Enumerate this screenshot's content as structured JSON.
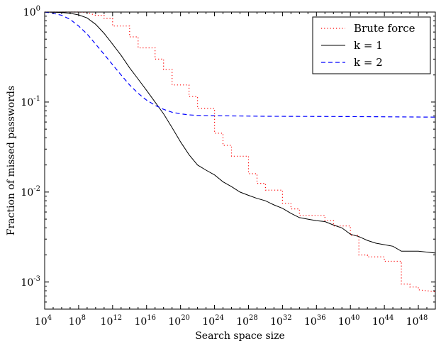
{
  "chart_data": {
    "type": "line",
    "title": "",
    "xlabel": "Search space size",
    "ylabel": "Fraction of missed passwords",
    "xscale": "log",
    "yscale": "log",
    "xlim": [
      10000.0,
      1e+50
    ],
    "ylim": [
      0.0005,
      1.0
    ],
    "grid": false,
    "legend_position": "top-right",
    "x_ticks": [
      {
        "exp": 4,
        "label_base": "10",
        "label_exp": "4"
      },
      {
        "exp": 8,
        "label_base": "10",
        "label_exp": "8"
      },
      {
        "exp": 12,
        "label_base": "10",
        "label_exp": "12"
      },
      {
        "exp": 16,
        "label_base": "10",
        "label_exp": "16"
      },
      {
        "exp": 20,
        "label_base": "10",
        "label_exp": "20"
      },
      {
        "exp": 24,
        "label_base": "10",
        "label_exp": "24"
      },
      {
        "exp": 28,
        "label_base": "10",
        "label_exp": "28"
      },
      {
        "exp": 32,
        "label_base": "10",
        "label_exp": "32"
      },
      {
        "exp": 36,
        "label_base": "10",
        "label_exp": "36"
      },
      {
        "exp": 40,
        "label_base": "10",
        "label_exp": "40"
      },
      {
        "exp": 44,
        "label_base": "10",
        "label_exp": "44"
      },
      {
        "exp": 48,
        "label_base": "10",
        "label_exp": "48"
      }
    ],
    "y_ticks": [
      {
        "exp": 0,
        "label_base": "10",
        "label_exp": "0",
        "label_plain": "1.0"
      },
      {
        "exp": -1,
        "label_base": "10",
        "label_exp": "-1",
        "label_plain": ""
      },
      {
        "exp": -2,
        "label_base": "10",
        "label_exp": "-2",
        "label_plain": ""
      },
      {
        "exp": -3,
        "label_base": "10",
        "label_exp": "-3",
        "label_plain": ""
      }
    ],
    "series": [
      {
        "name": "Brute force",
        "color": "#ff0000",
        "style": "dotted",
        "points": [
          [
            10000.0,
            1.0
          ],
          [
            100000000.0,
            1.0
          ],
          [
            1000000000.0,
            0.99
          ],
          [
            10000000000.0,
            0.92
          ],
          [
            100000000000.0,
            0.92
          ],
          [
            100000000000.0,
            0.85
          ],
          [
            1000000000000.0,
            0.85
          ],
          [
            1000000000000.0,
            0.7
          ],
          [
            100000000000000.0,
            0.7
          ],
          [
            100000000000000.0,
            0.53
          ],
          [
            1000000000000000.0,
            0.53
          ],
          [
            1000000000000000.0,
            0.4
          ],
          [
            1e+17,
            0.4
          ],
          [
            1e+17,
            0.3
          ],
          [
            1e+18,
            0.3
          ],
          [
            1e+18,
            0.23
          ],
          [
            1e+19,
            0.23
          ],
          [
            1e+19,
            0.155
          ],
          [
            1e+21,
            0.155
          ],
          [
            1e+21,
            0.115
          ],
          [
            1e+22,
            0.115
          ],
          [
            1e+22,
            0.085
          ],
          [
            1e+24,
            0.085
          ],
          [
            1e+24,
            0.045
          ],
          [
            1e+25,
            0.045
          ],
          [
            1e+25,
            0.033
          ],
          [
            1e+26,
            0.033
          ],
          [
            1e+26,
            0.025
          ],
          [
            1e+28,
            0.025
          ],
          [
            1e+28,
            0.016
          ],
          [
            1e+29,
            0.016
          ],
          [
            1e+29,
            0.0125
          ],
          [
            1e+30,
            0.0125
          ],
          [
            1e+30,
            0.0105
          ],
          [
            1e+32,
            0.0105
          ],
          [
            1e+32,
            0.0075
          ],
          [
            1e+33,
            0.0075
          ],
          [
            1e+33,
            0.0065
          ],
          [
            1e+34,
            0.0065
          ],
          [
            1e+34,
            0.0055
          ],
          [
            1e+37,
            0.0055
          ],
          [
            1e+37,
            0.0048
          ],
          [
            1e+38,
            0.0048
          ],
          [
            1e+38,
            0.0042
          ],
          [
            1e+40,
            0.0042
          ],
          [
            1e+40,
            0.0033
          ],
          [
            1e+41,
            0.0033
          ],
          [
            1e+41,
            0.002
          ],
          [
            1e+42,
            0.002
          ],
          [
            1e+42,
            0.0019
          ],
          [
            1e+44,
            0.0019
          ],
          [
            1e+44,
            0.0017
          ],
          [
            1e+46,
            0.0017
          ],
          [
            1e+46,
            0.00095
          ],
          [
            1e+47,
            0.00095
          ],
          [
            1e+47,
            0.00088
          ],
          [
            1e+48,
            0.00088
          ],
          [
            1e+48,
            0.00082
          ],
          [
            1e+50,
            0.00078
          ]
        ]
      },
      {
        "name": "k = 1",
        "color": "#000000",
        "style": "solid",
        "points": [
          [
            10000.0,
            1.0
          ],
          [
            1000000.0,
            0.99
          ],
          [
            10000000.0,
            0.97
          ],
          [
            100000000.0,
            0.93
          ],
          [
            1000000000.0,
            0.86
          ],
          [
            10000000000.0,
            0.73
          ],
          [
            100000000000.0,
            0.58
          ],
          [
            1000000000000.0,
            0.44
          ],
          [
            10000000000000.0,
            0.33
          ],
          [
            100000000000000.0,
            0.24
          ],
          [
            1000000000000000.0,
            0.18
          ],
          [
            1e+16,
            0.135
          ],
          [
            1e+17,
            0.1
          ],
          [
            1e+18,
            0.074
          ],
          [
            1e+19,
            0.052
          ],
          [
            1e+20,
            0.036
          ],
          [
            1e+21,
            0.026
          ],
          [
            1e+22,
            0.02
          ],
          [
            1e+23,
            0.0175
          ],
          [
            1e+24,
            0.0155
          ],
          [
            1e+25,
            0.013
          ],
          [
            1e+26,
            0.0115
          ],
          [
            1e+27,
            0.01
          ],
          [
            1e+28,
            0.0092
          ],
          [
            1e+29,
            0.0085
          ],
          [
            1e+30,
            0.008
          ],
          [
            1e+31,
            0.0072
          ],
          [
            1e+32,
            0.0066
          ],
          [
            1e+33,
            0.0058
          ],
          [
            1e+34,
            0.0052
          ],
          [
            1e+35,
            0.005
          ],
          [
            1e+36,
            0.0048
          ],
          [
            1e+37,
            0.0047
          ],
          [
            1e+38,
            0.0043
          ],
          [
            1e+39,
            0.004
          ],
          [
            1e+40,
            0.0034
          ],
          [
            1e+41,
            0.0032
          ],
          [
            1e+42,
            0.0029
          ],
          [
            1e+43,
            0.0027
          ],
          [
            1e+44,
            0.0026
          ],
          [
            1e+45,
            0.0025
          ],
          [
            1e+46,
            0.0022
          ],
          [
            1e+48,
            0.0022
          ],
          [
            1e+50,
            0.0021
          ]
        ]
      },
      {
        "name": "k = 2",
        "color": "#0000ff",
        "style": "dashed",
        "points": [
          [
            10000.0,
            1.0
          ],
          [
            100000.0,
            0.97
          ],
          [
            1000000.0,
            0.92
          ],
          [
            10000000.0,
            0.83
          ],
          [
            100000000.0,
            0.7
          ],
          [
            1000000000.0,
            0.57
          ],
          [
            10000000000.0,
            0.44
          ],
          [
            100000000000.0,
            0.34
          ],
          [
            1000000000000.0,
            0.26
          ],
          [
            10000000000000.0,
            0.2
          ],
          [
            100000000000000.0,
            0.155
          ],
          [
            1000000000000000.0,
            0.125
          ],
          [
            1e+16,
            0.105
          ],
          [
            1e+17,
            0.092
          ],
          [
            1e+18,
            0.083
          ],
          [
            1e+19,
            0.077
          ],
          [
            1e+20,
            0.074
          ],
          [
            1e+21,
            0.072
          ],
          [
            1e+22,
            0.071
          ],
          [
            1e+24,
            0.0705
          ],
          [
            1e+30,
            0.0695
          ],
          [
            1e+40,
            0.069
          ],
          [
            1e+50,
            0.068
          ]
        ]
      }
    ]
  }
}
